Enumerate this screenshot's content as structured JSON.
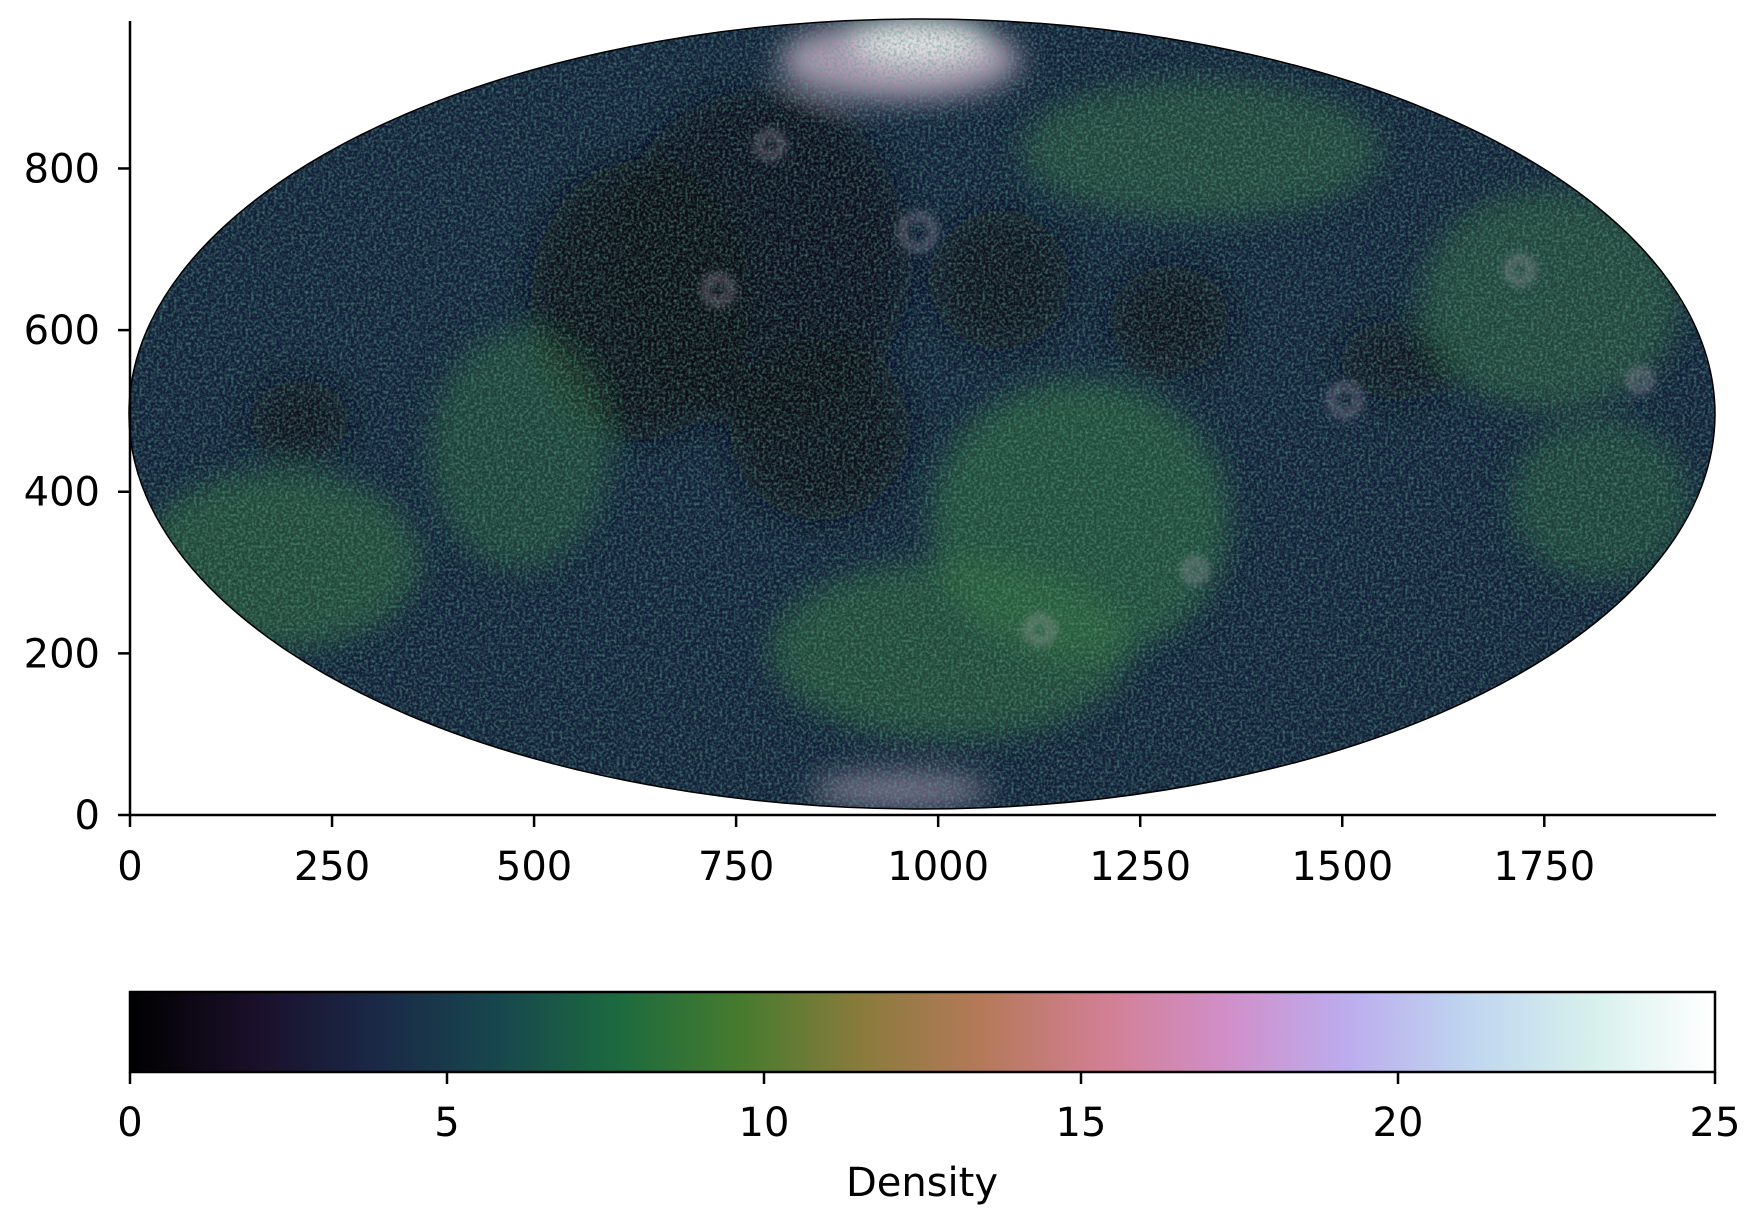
{
  "chart_data": {
    "type": "heatmap",
    "projection": "mollweide",
    "title": "",
    "xlabel": "",
    "ylabel": "",
    "xlim": [
      0,
      1960
    ],
    "ylim": [
      0,
      980
    ],
    "x_ticks": [
      0,
      250,
      500,
      750,
      1000,
      1250,
      1500,
      1750
    ],
    "y_ticks": [
      0,
      200,
      400,
      600,
      800
    ],
    "x_tick_labels": [
      "0",
      "250",
      "500",
      "750",
      "1000",
      "1250",
      "1500",
      "1750"
    ],
    "y_tick_labels": [
      "0",
      "200",
      "400",
      "600",
      "800"
    ],
    "colorbar": {
      "label": "Density",
      "range": [
        0,
        25
      ],
      "ticks": [
        0,
        5,
        10,
        15,
        20,
        25
      ],
      "tick_labels": [
        "0",
        "5",
        "10",
        "15",
        "20",
        "25"
      ],
      "colormap": "cubehelix",
      "orientation": "horizontal",
      "colors": [
        "#000000",
        "#1a0f29",
        "#1a2846",
        "#17464d",
        "#1c6a3f",
        "#467b2e",
        "#8a7b3c",
        "#b5795a",
        "#d27f93",
        "#d08fc9",
        "#bcadee",
        "#bfd6ef",
        "#d7f0ec",
        "#ffffff"
      ]
    },
    "map_palette": {
      "background": "#14203a",
      "dark_maria": "#0a0a1a",
      "green_highlands": "#2f6a3c",
      "bright_rims": "#d8b6d2",
      "polar_caps": "#f2eef0"
    }
  }
}
